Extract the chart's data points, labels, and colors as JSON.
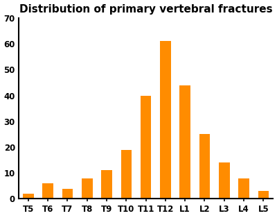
{
  "title": "Distribution of primary vertebral fractures",
  "categories": [
    "T5",
    "T6",
    "T7",
    "T8",
    "T9",
    "T10",
    "T11",
    "T12",
    "L1",
    "L2",
    "L3",
    "L4",
    "L5"
  ],
  "values": [
    2,
    6,
    4,
    8,
    11,
    19,
    40,
    61,
    44,
    25,
    14,
    8,
    3
  ],
  "bar_color": "#FF8C00",
  "ylim": [
    0,
    70
  ],
  "yticks": [
    0,
    10,
    20,
    30,
    40,
    50,
    60,
    70
  ],
  "title_fontsize": 11,
  "title_fontweight": "bold",
  "axis_linewidth": 1.5,
  "bar_width": 0.55,
  "background_color": "#ffffff",
  "tick_fontsize": 8.5,
  "tick_fontweight": "bold"
}
